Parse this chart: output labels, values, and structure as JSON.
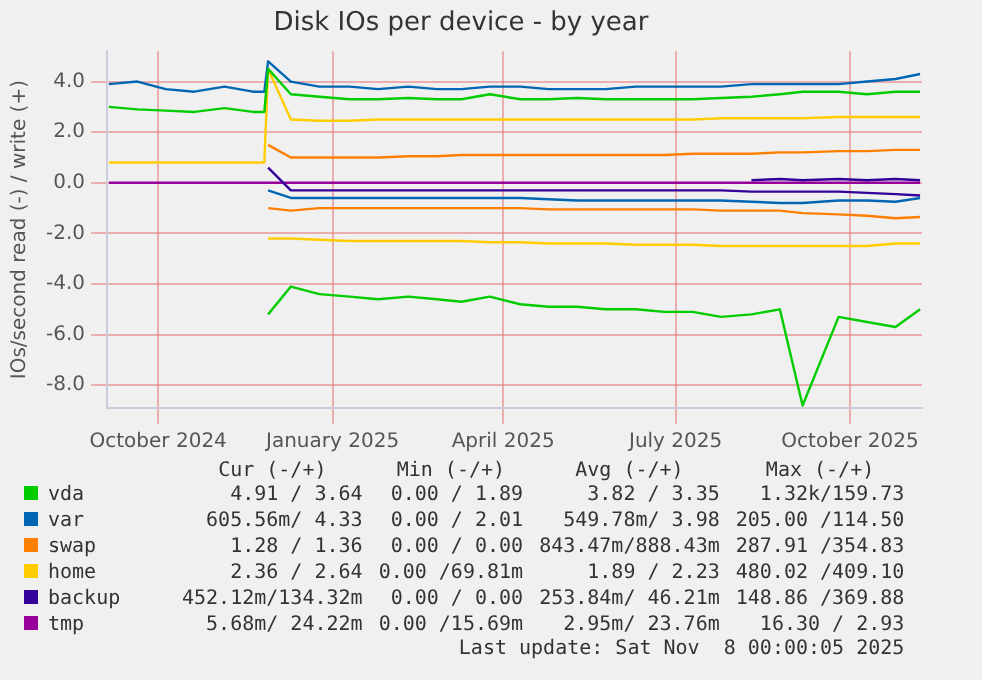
{
  "chart_data": {
    "type": "line",
    "title": "Disk IOs per device - by year",
    "ylabel": "IOs/second read (-) / write (+)",
    "x": [
      "2024-09-05",
      "2024-09-20",
      "2024-10-05",
      "2024-10-20",
      "2024-11-05",
      "2024-11-20",
      "2024-11-26",
      "2024-11-28",
      "2024-12-10",
      "2024-12-25",
      "2025-01-10",
      "2025-01-25",
      "2025-02-10",
      "2025-02-25",
      "2025-03-10",
      "2025-03-25",
      "2025-04-10",
      "2025-04-25",
      "2025-05-10",
      "2025-05-25",
      "2025-06-10",
      "2025-06-25",
      "2025-07-10",
      "2025-07-25",
      "2025-08-10",
      "2025-08-25",
      "2025-09-06",
      "2025-09-25",
      "2025-10-10",
      "2025-10-25",
      "2025-11-07"
    ],
    "xlim": [
      "2024-09-04",
      "2025-11-08"
    ],
    "xticks": [
      {
        "value": "2024-10-01",
        "label": "October 2024"
      },
      {
        "value": "2025-01-01",
        "label": "January 2025"
      },
      {
        "value": "2025-04-01",
        "label": "April 2025"
      },
      {
        "value": "2025-07-01",
        "label": "July 2025"
      },
      {
        "value": "2025-10-01",
        "label": "October 2025"
      }
    ],
    "ylim": [
      -8.9,
      5.2
    ],
    "yticks": [
      {
        "value": -8,
        "label": "-8.0"
      },
      {
        "value": -6,
        "label": "-6.0"
      },
      {
        "value": -4,
        "label": "-4.0"
      },
      {
        "value": -2,
        "label": "-2.0"
      },
      {
        "value": 0,
        "label": "0.0"
      },
      {
        "value": 2,
        "label": "2.0"
      },
      {
        "value": 4,
        "label": "4.0"
      }
    ],
    "grid": true,
    "legend": "bottom",
    "marker": "none",
    "line_style": "solid",
    "series": [
      {
        "name": "vda",
        "color": "#00cc00",
        "values": [
          3.0,
          2.9,
          2.85,
          2.8,
          2.95,
          2.8,
          2.8,
          4.5,
          3.5,
          3.4,
          3.3,
          3.3,
          3.35,
          3.3,
          3.3,
          3.5,
          3.3,
          3.3,
          3.35,
          3.3,
          3.3,
          3.3,
          3.3,
          3.35,
          3.4,
          3.5,
          3.6,
          3.6,
          3.5,
          3.6,
          3.6
        ]
      },
      {
        "color": "#00cc00",
        "values": [
          null,
          null,
          null,
          null,
          null,
          null,
          null,
          -5.2,
          -4.1,
          -4.4,
          -4.5,
          -4.6,
          -4.5,
          -4.6,
          -4.7,
          -4.5,
          -4.8,
          -4.9,
          -4.9,
          -5.0,
          -5.0,
          -5.1,
          -5.1,
          -5.3,
          -5.2,
          -5.0,
          -8.8,
          -5.3,
          -5.5,
          -5.7,
          -5.0
        ]
      },
      {
        "name": "var",
        "color": "#0066b3",
        "values": [
          3.9,
          4.0,
          3.7,
          3.6,
          3.8,
          3.6,
          3.6,
          4.8,
          4.0,
          3.8,
          3.8,
          3.7,
          3.8,
          3.7,
          3.7,
          3.8,
          3.8,
          3.7,
          3.7,
          3.7,
          3.8,
          3.8,
          3.8,
          3.8,
          3.9,
          3.9,
          3.9,
          3.9,
          4.0,
          4.1,
          4.3
        ]
      },
      {
        "color": "#0066b3",
        "values": [
          null,
          null,
          null,
          null,
          null,
          null,
          null,
          -0.3,
          -0.6,
          -0.6,
          -0.6,
          -0.6,
          -0.6,
          -0.6,
          -0.6,
          -0.6,
          -0.6,
          -0.65,
          -0.7,
          -0.7,
          -0.7,
          -0.7,
          -0.7,
          -0.7,
          -0.75,
          -0.8,
          -0.8,
          -0.7,
          -0.7,
          -0.75,
          -0.6
        ]
      },
      {
        "name": "swap",
        "color": "#ff8000",
        "values": [
          null,
          null,
          null,
          null,
          null,
          null,
          null,
          1.5,
          1.0,
          1.0,
          1.0,
          1.0,
          1.05,
          1.05,
          1.1,
          1.1,
          1.1,
          1.1,
          1.1,
          1.1,
          1.1,
          1.1,
          1.15,
          1.15,
          1.15,
          1.2,
          1.2,
          1.25,
          1.25,
          1.3,
          1.3
        ]
      },
      {
        "color": "#ff8000",
        "values": [
          null,
          null,
          null,
          null,
          null,
          null,
          null,
          -1.0,
          -1.1,
          -1.0,
          -1.0,
          -1.0,
          -1.0,
          -1.0,
          -1.0,
          -1.0,
          -1.0,
          -1.05,
          -1.05,
          -1.05,
          -1.05,
          -1.05,
          -1.05,
          -1.1,
          -1.1,
          -1.1,
          -1.2,
          -1.25,
          -1.3,
          -1.4,
          -1.35
        ]
      },
      {
        "name": "home",
        "color": "#ffcc00",
        "values": [
          0.8,
          0.8,
          0.8,
          0.8,
          0.8,
          0.8,
          0.8,
          4.5,
          2.5,
          2.45,
          2.45,
          2.5,
          2.5,
          2.5,
          2.5,
          2.5,
          2.5,
          2.5,
          2.5,
          2.5,
          2.5,
          2.5,
          2.5,
          2.55,
          2.55,
          2.55,
          2.55,
          2.6,
          2.6,
          2.6,
          2.6
        ]
      },
      {
        "color": "#ffcc00",
        "values": [
          null,
          null,
          null,
          null,
          null,
          null,
          null,
          -2.2,
          -2.2,
          -2.25,
          -2.3,
          -2.3,
          -2.3,
          -2.3,
          -2.3,
          -2.35,
          -2.35,
          -2.4,
          -2.4,
          -2.4,
          -2.45,
          -2.45,
          -2.45,
          -2.5,
          -2.5,
          -2.5,
          -2.5,
          -2.5,
          -2.5,
          -2.4,
          -2.4
        ]
      },
      {
        "name": "backup",
        "color": "#330099",
        "values": [
          null,
          null,
          null,
          null,
          null,
          null,
          null,
          null,
          null,
          null,
          null,
          null,
          null,
          null,
          null,
          null,
          null,
          null,
          null,
          null,
          null,
          null,
          null,
          null,
          0.1,
          0.15,
          0.1,
          0.15,
          0.1,
          0.15,
          0.1
        ]
      },
      {
        "color": "#330099",
        "values": [
          null,
          null,
          null,
          null,
          null,
          null,
          null,
          0.6,
          -0.3,
          -0.3,
          -0.3,
          -0.3,
          -0.3,
          -0.3,
          -0.3,
          -0.3,
          -0.3,
          -0.3,
          -0.3,
          -0.3,
          -0.3,
          -0.3,
          -0.3,
          -0.3,
          -0.35,
          -0.35,
          -0.35,
          -0.35,
          -0.4,
          -0.45,
          -0.5
        ]
      },
      {
        "name": "tmp",
        "color": "#990099",
        "values": [
          0,
          0,
          0,
          0,
          0,
          0,
          0,
          0,
          0,
          0,
          0,
          0,
          0,
          0,
          0,
          0,
          0,
          0,
          0,
          0,
          0,
          0,
          0,
          0,
          0,
          0,
          0,
          0,
          0,
          0,
          0
        ]
      }
    ],
    "annotations": [
      "Cur (-/+)",
      "Min (-/+)",
      "Avg (-/+)",
      "Max (-/+)",
      "4.91 / 3.64",
      "0.00 / 1.89",
      "3.82 / 3.35",
      "1.32k/159.73",
      "605.56m/ 4.33",
      "0.00 / 2.01",
      "549.78m/ 3.98",
      "205.00 /114.50",
      "1.28 / 1.36",
      "0.00 / 0.00",
      "843.47m/888.43m",
      "287.91 /354.83",
      "2.36 / 2.64",
      "0.00 /69.81m",
      "1.89 / 2.23",
      "480.02 /409.10",
      "452.12m/134.32m",
      "0.00 / 0.00",
      "253.84m/ 46.21m",
      "148.86 /369.88",
      "5.68m/ 24.22m",
      "0.00 /15.69m",
      "2.95m/ 23.76m",
      "16.30 / 2.93",
      "Last update: Sat Nov  8 00:00:05 2025"
    ]
  }
}
